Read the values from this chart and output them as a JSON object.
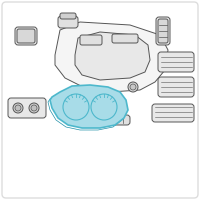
{
  "bg_color": "#ffffff",
  "line_color": "#555555",
  "highlight_color": "#4db8cc",
  "highlight_fill": "#a8dce8",
  "fig_width": 2.0,
  "fig_height": 2.0,
  "dpi": 100,
  "border_color": "#dddddd"
}
